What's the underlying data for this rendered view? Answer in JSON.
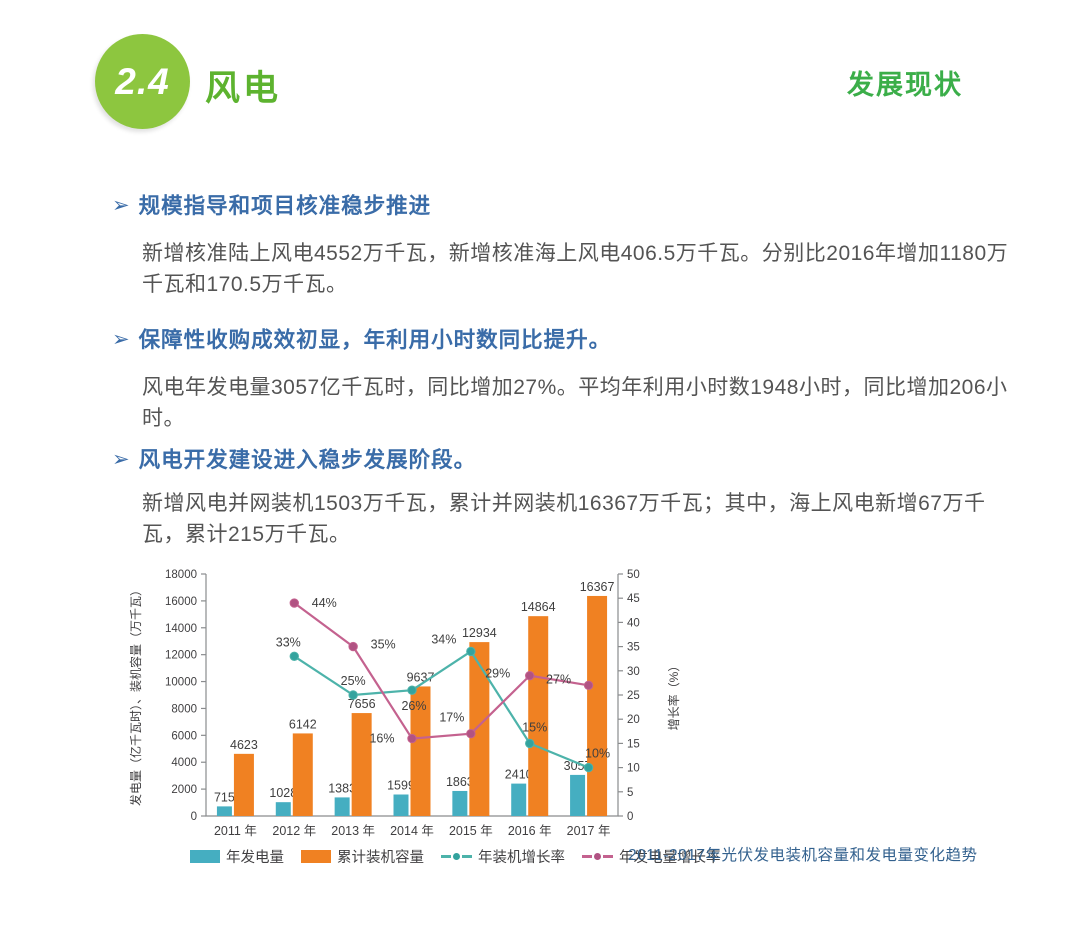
{
  "page": {
    "section_number": "2.4",
    "title": "风电",
    "corner_label": "发展现状"
  },
  "bullet_marker": "➢",
  "bullets": [
    {
      "heading": "规模指导和项目核准稳步推进",
      "body": "新增核准陆上风电4552万千瓦，新增核准海上风电406.5万千瓦。分别比2016年增加1180万千瓦和170.5万千瓦。"
    },
    {
      "heading": "保障性收购成效初显，年利用小时数同比提升。",
      "body": "风电年发电量3057亿千瓦时，同比增加27%。平均年利用小时数1948小时，同比增加206小时。"
    },
    {
      "heading": "风电开发建设进入稳步发展阶段。",
      "body": "新增风电并网装机1503万千瓦，累计并网装机16367万千瓦；其中，海上风电新增67万千瓦，累计215万千瓦。"
    }
  ],
  "chart_caption": "2011-2017年光伏发电装机容量和发电量变化趋势",
  "colors": {
    "badge_green": "#8dc63f",
    "title_green": "#5db32f",
    "corner_green": "#3bae49",
    "heading_blue": "#3a6ca8",
    "caption_blue": "#33618e",
    "axis_gray": "#414042"
  },
  "chart_data": {
    "type": "bar",
    "subtype": "grouped bars with two percentage line series on secondary axis",
    "categories": [
      "2011 年",
      "2012 年",
      "2013 年",
      "2014 年",
      "2015 年",
      "2016 年",
      "2017 年"
    ],
    "bar_series": [
      {
        "name": "年发电量",
        "color": "#45aec1",
        "values": [
          715,
          1028,
          1383,
          1599,
          1863,
          2410,
          3057
        ]
      },
      {
        "name": "累计装机容量",
        "color": "#f08122",
        "values": [
          4623,
          6142,
          7656,
          9637,
          12934,
          14864,
          16367
        ]
      }
    ],
    "line_series": [
      {
        "name": "年装机增长率",
        "color": "#4db3aa",
        "marker_color": "#33a39e",
        "values": [
          null,
          33,
          25,
          26,
          34,
          15,
          10
        ]
      },
      {
        "name": "年发电量增长率",
        "color": "#c4628f",
        "marker_color": "#b15383",
        "values": [
          null,
          44,
          35,
          16,
          17,
          29,
          27
        ]
      }
    ],
    "left_axis": {
      "label": "发电量（亿千瓦时）、装机容量（万千瓦）",
      "min": 0,
      "max": 18000,
      "step": 2000
    },
    "right_axis": {
      "label": "增长率（%）",
      "min": 0,
      "max": 50,
      "step": 5
    },
    "grid": false,
    "legend_position": "bottom"
  }
}
